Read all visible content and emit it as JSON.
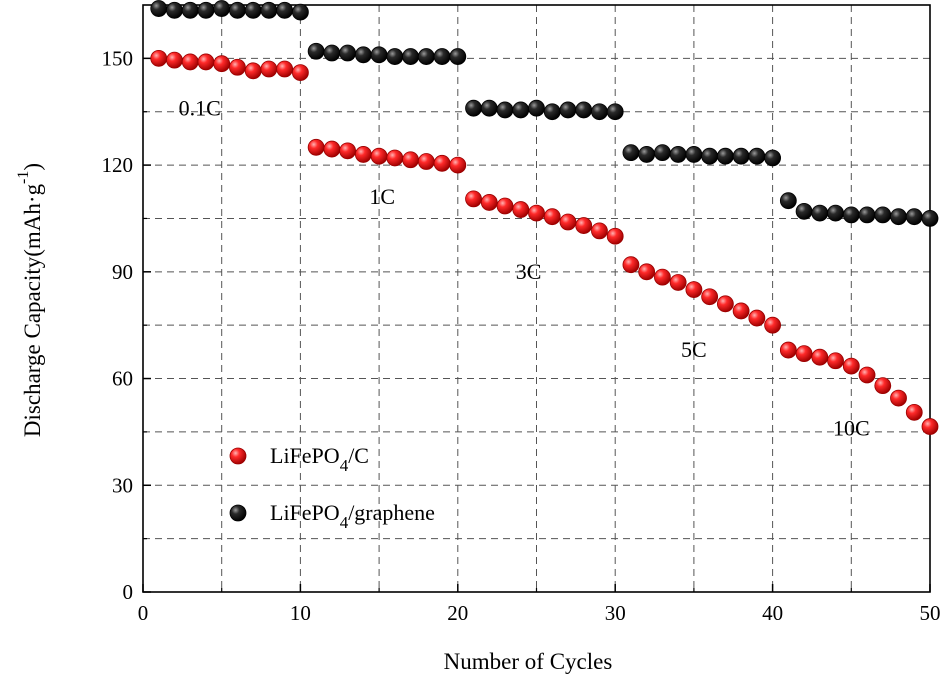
{
  "chart_data": {
    "type": "scatter",
    "xlabel": "Number of Cycles",
    "ylabel": {
      "main": "Discharge Capacity(mAh·g",
      "sup": "-1",
      "close": ")"
    },
    "xlim": [
      0,
      50
    ],
    "ylim": [
      0,
      165
    ],
    "xticks": [
      0,
      10,
      20,
      30,
      40,
      50
    ],
    "yticks": [
      0,
      30,
      60,
      90,
      120,
      150
    ],
    "grid": true,
    "legend_position": "lower-left",
    "series": [
      {
        "name": "LiFePO4/C",
        "legend_label": {
          "pre": "LiFePO",
          "sub": "4",
          "post": "/C"
        },
        "color": "#e31a1c",
        "x": [
          1,
          2,
          3,
          4,
          5,
          6,
          7,
          8,
          9,
          10,
          11,
          12,
          13,
          14,
          15,
          16,
          17,
          18,
          19,
          20,
          21,
          22,
          23,
          24,
          25,
          26,
          27,
          28,
          29,
          30,
          31,
          32,
          33,
          34,
          35,
          36,
          37,
          38,
          39,
          40,
          41,
          42,
          43,
          44,
          45,
          46,
          47,
          48,
          49,
          50
        ],
        "y": [
          150,
          149.5,
          149,
          149,
          148.5,
          147.5,
          146.5,
          147,
          147,
          146,
          125,
          124.5,
          124,
          123,
          122.5,
          122,
          121.5,
          121,
          120.5,
          120,
          110.5,
          109.5,
          108.5,
          107.5,
          106.5,
          105.5,
          104,
          103,
          101.5,
          100,
          92,
          90,
          88.5,
          87,
          85,
          83,
          81,
          79,
          77,
          75,
          68,
          67,
          66,
          65,
          63.5,
          61,
          58,
          54.5,
          50.5,
          46.5
        ]
      },
      {
        "name": "LiFePO4/graphene",
        "legend_label": {
          "pre": "LiFePO",
          "sub": "4",
          "post": "/graphene"
        },
        "color": "#1a1a1a",
        "x": [
          1,
          2,
          3,
          4,
          5,
          6,
          7,
          8,
          9,
          10,
          11,
          12,
          13,
          14,
          15,
          16,
          17,
          18,
          19,
          20,
          21,
          22,
          23,
          24,
          25,
          26,
          27,
          28,
          29,
          30,
          31,
          32,
          33,
          34,
          35,
          36,
          37,
          38,
          39,
          40,
          41,
          42,
          43,
          44,
          45,
          46,
          47,
          48,
          49,
          50
        ],
        "y": [
          164,
          163.5,
          163.5,
          163.5,
          164,
          163.5,
          163.5,
          163.5,
          163.5,
          163,
          152,
          151.5,
          151.5,
          151,
          151,
          150.5,
          150.5,
          150.5,
          150.5,
          150.5,
          136,
          136,
          135.5,
          135.5,
          136,
          135,
          135.5,
          135.5,
          135,
          135,
          123.5,
          123,
          123.5,
          123,
          123,
          122.5,
          122.5,
          122.5,
          122.5,
          122,
          110,
          107,
          106.5,
          106.5,
          106,
          106,
          106,
          105.5,
          105.5,
          105
        ]
      }
    ],
    "annotations": [
      {
        "text": "0.1C",
        "x": 3.6,
        "y": 134
      },
      {
        "text": "1C",
        "x": 15.2,
        "y": 109
      },
      {
        "text": "3C",
        "x": 24.5,
        "y": 88
      },
      {
        "text": "5C",
        "x": 35,
        "y": 66
      },
      {
        "text": "10C",
        "x": 45,
        "y": 44
      }
    ]
  }
}
